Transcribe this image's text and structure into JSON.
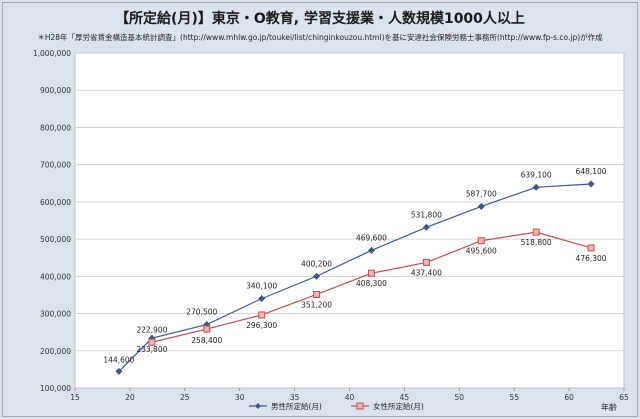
{
  "chart_data": {
    "type": "line",
    "title": "【所定給(月)】東京・O教育, 学習支援業・人数規模1000人以上",
    "source_note": "＊H28年「厚労省賃金構造基本統計調査」(http://www.mhlw.go.jp/toukei/list/chinginkouzou.html)を基に安達社会保険労務士事務所(http://www.fp-s.co.jp)が作成",
    "xlabel": "年齢",
    "ylabel": "",
    "xlim": [
      15,
      65
    ],
    "ylim": [
      100000,
      1000000
    ],
    "x_ticks": [
      15,
      20,
      25,
      30,
      35,
      40,
      45,
      50,
      55,
      60,
      65
    ],
    "y_ticks": [
      "100,000",
      "200,000",
      "300,000",
      "400,000",
      "500,000",
      "600,000",
      "700,000",
      "800,000",
      "900,000",
      "1,000,000"
    ],
    "grid": "horizontal",
    "legend_position": "bottom",
    "series": [
      {
        "name": "男性所定給(月)",
        "color": "#3b5a8f",
        "marker": "diamond",
        "x": [
          19,
          22,
          27,
          32,
          37,
          42,
          47,
          52,
          57,
          62
        ],
        "values": [
          144600,
          233800,
          270500,
          340100,
          400200,
          469600,
          531800,
          587700,
          639100,
          648100
        ],
        "labels": [
          "144,600",
          "233,800",
          "270,500",
          "340,100",
          "400,200",
          "469,600",
          "531,800",
          "587,700",
          "639,100",
          "648,100"
        ]
      },
      {
        "name": "女性所定給(月)",
        "color": "#c0504d",
        "marker": "square",
        "x": [
          22,
          27,
          32,
          37,
          42,
          47,
          52,
          57,
          62
        ],
        "values": [
          222900,
          258400,
          296300,
          351200,
          408300,
          437400,
          495600,
          518800,
          476300
        ],
        "labels": [
          "222,900",
          "258,400",
          "296,300",
          "351,200",
          "408,300",
          "437,400",
          "495,600",
          "518,800",
          "476,300"
        ]
      }
    ]
  }
}
